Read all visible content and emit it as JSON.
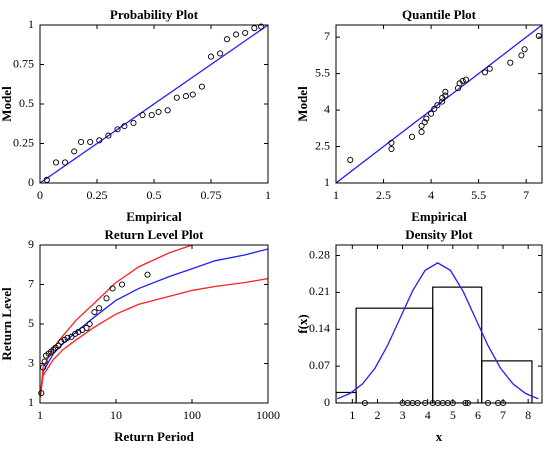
{
  "chart_data": [
    {
      "type": "scatter",
      "title": "Probability Plot",
      "xlabel": "Empirical",
      "ylabel": "Model",
      "xlim": [
        0,
        1
      ],
      "ylim": [
        0,
        1
      ],
      "xticks": [
        0,
        0.25,
        0.5,
        0.75,
        1
      ],
      "yticks": [
        0,
        0.25,
        0.5,
        0.75,
        1
      ],
      "series": [
        {
          "style": "points",
          "color": "#000000",
          "x": [
            0.03,
            0.07,
            0.11,
            0.15,
            0.18,
            0.22,
            0.26,
            0.3,
            0.34,
            0.37,
            0.41,
            0.45,
            0.49,
            0.52,
            0.56,
            0.6,
            0.64,
            0.67,
            0.71,
            0.75,
            0.79,
            0.82,
            0.86,
            0.9,
            0.94,
            0.97
          ],
          "values": [
            0.02,
            0.13,
            0.13,
            0.2,
            0.26,
            0.26,
            0.27,
            0.3,
            0.34,
            0.36,
            0.38,
            0.43,
            0.43,
            0.45,
            0.46,
            0.54,
            0.55,
            0.56,
            0.61,
            0.8,
            0.82,
            0.91,
            0.94,
            0.95,
            0.98,
            0.99
          ]
        },
        {
          "style": "line",
          "color": "#1f1fff",
          "x": [
            0,
            1
          ],
          "values": [
            0,
            1
          ]
        }
      ]
    },
    {
      "type": "scatter",
      "title": "Quantile Plot",
      "xlabel": "Empirical",
      "ylabel": "Model",
      "xlim": [
        1,
        7.5
      ],
      "ylim": [
        1,
        7.5
      ],
      "xticks": [
        1,
        2.5,
        4,
        5.5,
        7
      ],
      "yticks": [
        1,
        2.5,
        4,
        5.5,
        7
      ],
      "series": [
        {
          "style": "points",
          "color": "#000000",
          "x": [
            1.45,
            2.75,
            2.75,
            3.4,
            3.7,
            3.7,
            3.8,
            3.85,
            4.0,
            4.1,
            4.2,
            4.35,
            4.35,
            4.45,
            4.45,
            4.85,
            4.9,
            5.0,
            5.1,
            5.7,
            5.85,
            6.5,
            6.85,
            6.95,
            7.4
          ],
          "values": [
            1.95,
            2.4,
            2.65,
            2.9,
            3.1,
            3.35,
            3.5,
            3.65,
            3.85,
            4.05,
            4.2,
            4.35,
            4.5,
            4.6,
            4.75,
            4.9,
            5.1,
            5.2,
            5.25,
            5.55,
            5.7,
            5.95,
            6.25,
            6.5,
            7.05
          ]
        },
        {
          "style": "line",
          "color": "#1f1fff",
          "x": [
            1,
            7.5
          ],
          "values": [
            1,
            7.5
          ]
        }
      ]
    },
    {
      "type": "line",
      "title": "Return Level Plot",
      "xlabel": "Return Period",
      "ylabel": "Return Level",
      "xscale": "log",
      "xlim": [
        1,
        1000
      ],
      "ylim": [
        1,
        9
      ],
      "xticks": [
        1,
        10,
        100,
        1000
      ],
      "yticks": [
        1,
        3,
        5,
        7,
        9
      ],
      "series": [
        {
          "style": "line",
          "color": "#1f1fff",
          "x": [
            1.01,
            1.1,
            1.5,
            2,
            3,
            5,
            10,
            20,
            50,
            100,
            200,
            500,
            1000
          ],
          "values": [
            1.3,
            2.6,
            3.5,
            4.0,
            4.6,
            5.3,
            6.2,
            6.8,
            7.4,
            7.8,
            8.2,
            8.5,
            8.8
          ]
        },
        {
          "style": "line",
          "color": "#ff2020",
          "x": [
            1.01,
            1.1,
            1.5,
            2,
            3,
            5,
            10,
            20,
            50,
            100
          ],
          "values": [
            1.3,
            2.8,
            3.8,
            4.4,
            5.2,
            6.0,
            7.1,
            7.9,
            8.6,
            9.0
          ]
        },
        {
          "style": "line",
          "color": "#ff2020",
          "x": [
            1.01,
            1.1,
            1.5,
            2,
            3,
            5,
            10,
            20,
            50,
            100,
            200,
            500,
            1000
          ],
          "values": [
            1.3,
            2.4,
            3.2,
            3.7,
            4.2,
            4.8,
            5.5,
            6.0,
            6.4,
            6.7,
            6.9,
            7.1,
            7.3
          ]
        },
        {
          "style": "points",
          "color": "#000000",
          "x": [
            1.04,
            1.1,
            1.15,
            1.2,
            1.3,
            1.4,
            1.5,
            1.6,
            1.75,
            1.9,
            2.1,
            2.3,
            2.6,
            2.9,
            3.2,
            3.6,
            4.1,
            4.5,
            5.2,
            6.0,
            7.5,
            9,
            12,
            26
          ],
          "values": [
            1.5,
            2.8,
            3.1,
            3.4,
            3.5,
            3.6,
            3.7,
            3.8,
            3.9,
            4.1,
            4.2,
            4.3,
            4.35,
            4.5,
            4.6,
            4.7,
            4.8,
            5.0,
            5.6,
            5.8,
            6.3,
            6.8,
            7.0,
            7.5
          ]
        }
      ]
    },
    {
      "type": "histogram",
      "title": "Density Plot",
      "xlabel": "x",
      "ylabel": "f(x)",
      "xlim": [
        0.35,
        8.55
      ],
      "ylim": [
        0,
        0.3
      ],
      "xticks": [
        1,
        2,
        3,
        4,
        5,
        6,
        7,
        8
      ],
      "yticks": [
        0,
        0.07,
        0.14,
        0.21,
        0.28
      ],
      "bins": [
        0.35,
        1.15,
        4.2,
        6.15,
        8.15
      ],
      "values": [
        0.02,
        0.18,
        0.22,
        0.08
      ],
      "color": "#000000",
      "series": [
        {
          "style": "line",
          "color": "#1f1fff",
          "x": [
            0.4,
            0.9,
            1.4,
            1.9,
            2.4,
            2.9,
            3.4,
            3.9,
            4.4,
            4.9,
            5.4,
            5.9,
            6.4,
            6.9,
            7.4,
            7.9,
            8.4
          ],
          "values": [
            0.008,
            0.018,
            0.036,
            0.066,
            0.109,
            0.161,
            0.213,
            0.252,
            0.266,
            0.252,
            0.213,
            0.161,
            0.109,
            0.066,
            0.036,
            0.018,
            0.008
          ]
        },
        {
          "style": "points",
          "color": "#000000",
          "x": [
            1.5,
            3.0,
            3.2,
            3.4,
            3.6,
            3.9,
            4.2,
            4.4,
            4.6,
            4.8,
            5.0,
            5.5,
            5.6,
            6.4,
            6.8,
            7.0
          ],
          "values": [
            0,
            0,
            0,
            0,
            0,
            0,
            0,
            0,
            0,
            0,
            0,
            0,
            0,
            0,
            0,
            0
          ]
        }
      ]
    }
  ]
}
